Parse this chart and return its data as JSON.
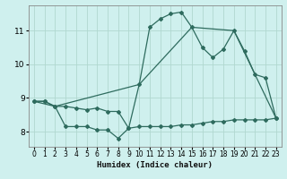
{
  "xlabel": "Humidex (Indice chaleur)",
  "bg_color": "#cff0ee",
  "line_color": "#2e6b5e",
  "grid_color": "#b0d8d0",
  "xlim": [
    -0.5,
    23.5
  ],
  "ylim": [
    7.55,
    11.75
  ],
  "xticks": [
    0,
    1,
    2,
    3,
    4,
    5,
    6,
    7,
    8,
    9,
    10,
    11,
    12,
    13,
    14,
    15,
    16,
    17,
    18,
    19,
    20,
    21,
    22,
    23
  ],
  "yticks": [
    8,
    9,
    10,
    11
  ],
  "line1_x": [
    0,
    1,
    2,
    3,
    4,
    5,
    6,
    7,
    8,
    9,
    10,
    11,
    12,
    13,
    14,
    15,
    16,
    17,
    18,
    19,
    20,
    21,
    22,
    23
  ],
  "line1_y": [
    8.9,
    8.9,
    8.75,
    8.15,
    8.15,
    8.15,
    8.05,
    8.05,
    7.8,
    8.1,
    8.15,
    8.15,
    8.15,
    8.15,
    8.2,
    8.2,
    8.25,
    8.3,
    8.3,
    8.35,
    8.35,
    8.35,
    8.35,
    8.4
  ],
  "line2_x": [
    0,
    1,
    2,
    3,
    4,
    5,
    6,
    7,
    8,
    9,
    10,
    11,
    12,
    13,
    14,
    15,
    16,
    17,
    18,
    19,
    20,
    21,
    22,
    23
  ],
  "line2_y": [
    8.9,
    8.9,
    8.75,
    8.75,
    8.7,
    8.65,
    8.7,
    8.6,
    8.6,
    8.1,
    9.4,
    11.1,
    11.35,
    11.5,
    11.55,
    11.1,
    10.5,
    10.2,
    10.45,
    11.0,
    10.4,
    9.7,
    9.6,
    8.4
  ],
  "line3_x": [
    0,
    2,
    10,
    15,
    19,
    23
  ],
  "line3_y": [
    8.9,
    8.75,
    9.4,
    11.1,
    11.0,
    8.4
  ],
  "marker": "D",
  "markersize": 2.0,
  "linewidth": 0.9
}
